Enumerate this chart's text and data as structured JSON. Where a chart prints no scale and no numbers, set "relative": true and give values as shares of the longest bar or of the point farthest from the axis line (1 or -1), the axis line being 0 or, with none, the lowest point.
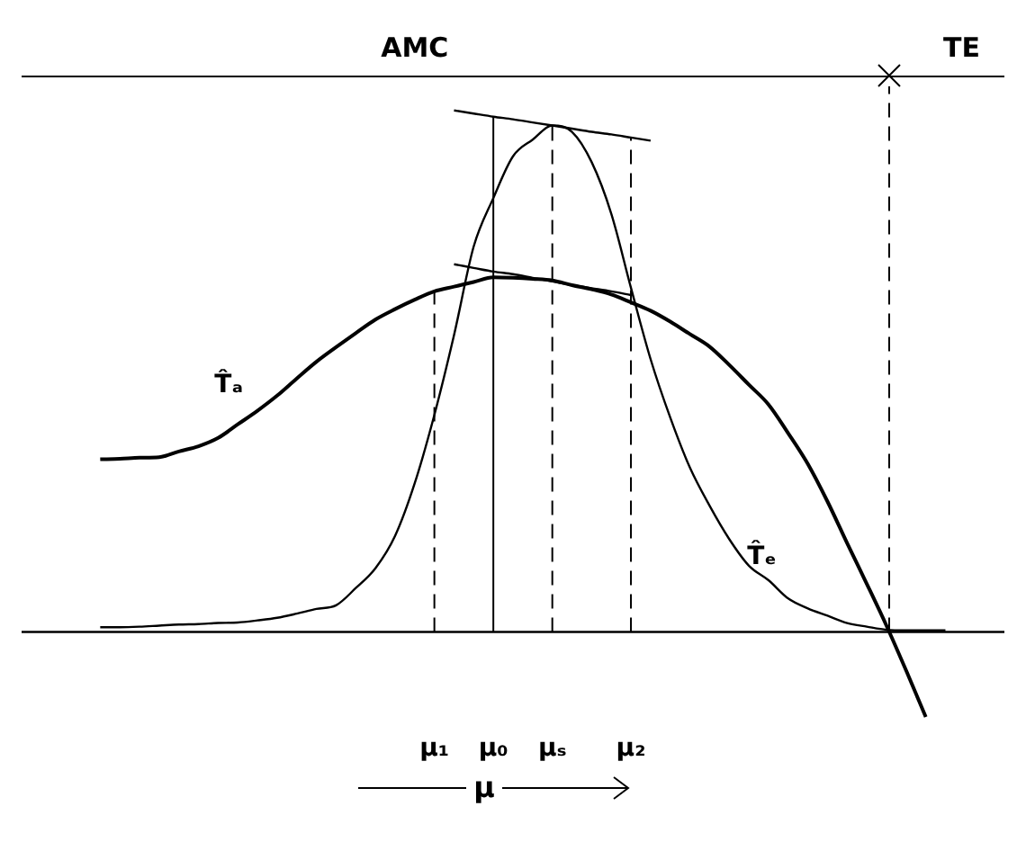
{
  "chart_data": {
    "type": "line",
    "relative": true,
    "xlabel": "μ",
    "annotations": [
      "AMC"
    ],
    "categories": [
      null,
      null,
      null,
      null,
      null,
      null,
      null,
      null,
      null,
      null,
      null,
      null,
      null,
      null,
      null,
      null,
      null,
      null,
      null,
      null,
      null,
      "μ₁",
      null,
      null,
      "μ₀",
      null,
      null,
      "μₛ",
      null,
      null,
      null,
      "μ₂",
      null,
      null,
      null,
      null,
      null,
      null,
      null,
      null,
      null,
      null,
      null,
      null,
      null,
      null,
      null,
      null,
      null,
      null,
      null
    ],
    "grid": false,
    "legend": false,
    "marker": "none",
    "line_style": "solid",
    "series": [
      {
        "name": "T̂ₐ",
        "color": "#000000",
        "values": [
          null,
          null,
          null,
          null,
          0.331,
          0.332,
          0.334,
          0.335,
          0.346,
          0.356,
          0.372,
          0.398,
          0.424,
          0.453,
          0.486,
          0.518,
          0.546,
          0.573,
          0.599,
          0.619,
          0.637,
          0.653,
          0.662,
          0.671,
          0.68,
          0.679,
          0.677,
          0.674,
          0.665,
          0.657,
          0.647,
          0.632,
          0.616,
          0.595,
          0.571,
          0.547,
          0.512,
          0.474,
          0.436,
          0.381,
          0.322,
          0.25,
          0.17,
          0.092,
          0.012,
          -0.074,
          -0.163,
          null,
          null,
          null,
          null
        ]
      },
      {
        "name": "T̂ₑ",
        "color": "#000000",
        "values": [
          null,
          null,
          null,
          null,
          0.009,
          0.009,
          0.01,
          0.012,
          0.014,
          0.015,
          0.017,
          0.018,
          0.022,
          0.027,
          0.035,
          0.044,
          0.051,
          0.084,
          0.122,
          0.184,
          0.285,
          0.416,
          0.569,
          0.739,
          0.832,
          0.912,
          0.944,
          0.971,
          0.959,
          0.901,
          0.802,
          0.66,
          0.523,
          0.411,
          0.315,
          0.242,
          0.178,
          0.127,
          0.099,
          0.064,
          0.045,
          0.031,
          0.017,
          0.01,
          0.004,
          0.003,
          0.003,
          0.003,
          null,
          null,
          null
        ]
      },
      {
        "color": "#000000",
        "values": [
          null,
          null,
          null,
          null,
          null,
          null,
          null,
          null,
          null,
          null,
          null,
          null,
          null,
          null,
          null,
          null,
          null,
          null,
          null,
          null,
          null,
          null,
          1,
          0.994,
          0.988,
          0.983,
          0.977,
          0.971,
          0.965,
          0.959,
          0.954,
          0.948,
          0.942,
          null,
          null,
          null,
          null,
          null,
          null,
          null,
          null,
          null,
          null,
          null,
          null,
          null,
          null,
          null,
          null,
          null,
          null
        ]
      },
      {
        "color": "#000000",
        "values": [
          null,
          null,
          null,
          null,
          null,
          null,
          null,
          null,
          null,
          null,
          null,
          null,
          null,
          null,
          null,
          null,
          null,
          null,
          null,
          null,
          null,
          null,
          0.705,
          0.698,
          0.691,
          0.686,
          0.679,
          0.672,
          0.665,
          0.659,
          0.653,
          0.646,
          null,
          null,
          null,
          null,
          null,
          null,
          null,
          null,
          null,
          null,
          null,
          null,
          null,
          null,
          null,
          null,
          null,
          null,
          null
        ]
      }
    ],
    "ref_lines": [
      {
        "axis": "x",
        "label": "TE",
        "color": "#000000",
        "line_style": "dashed"
      },
      {
        "axis": "x",
        "value": "μ₁",
        "color": "#000000",
        "line_style": "dashed"
      },
      {
        "axis": "x",
        "value": "μ₀",
        "color": "#000000",
        "line_style": "solid"
      },
      {
        "axis": "x",
        "value": "μₛ",
        "color": "#000000",
        "line_style": "dashed"
      },
      {
        "axis": "x",
        "value": "μ₂",
        "color": "#000000",
        "line_style": "dashed"
      }
    ]
  }
}
